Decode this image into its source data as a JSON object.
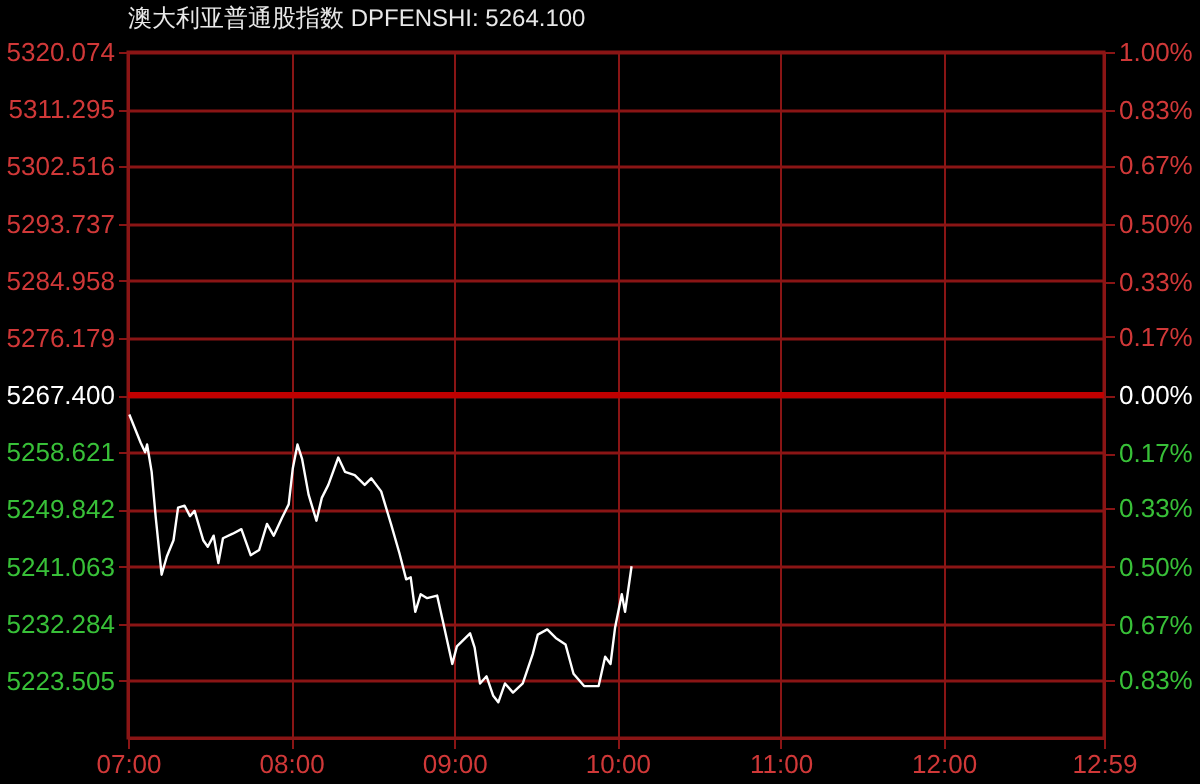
{
  "chart_data": {
    "type": "line",
    "title": "澳大利亚普通股指数 DPFENSHI: 5264.100",
    "x": [
      7.008,
      7.077,
      7.105,
      7.117,
      7.145,
      7.17,
      7.206,
      7.238,
      7.279,
      7.307,
      7.347,
      7.38,
      7.408,
      7.461,
      7.489,
      7.525,
      7.554,
      7.582,
      7.642,
      7.695,
      7.752,
      7.804,
      7.852,
      7.893,
      7.945,
      7.985,
      8.01,
      8.039,
      8.067,
      8.107,
      8.155,
      8.188,
      8.228,
      8.289,
      8.33,
      8.39,
      8.451,
      8.491,
      8.552,
      8.612,
      8.664,
      8.705,
      8.733,
      8.761,
      8.794,
      8.834,
      8.895,
      8.935,
      8.988,
      9.016,
      9.097,
      9.125,
      9.158,
      9.198,
      9.239,
      9.27,
      9.311,
      9.36,
      9.42,
      9.481,
      9.512,
      9.57,
      9.622,
      9.682,
      9.731,
      9.796,
      9.885,
      9.925,
      9.958,
      9.986,
      10.027,
      10.047,
      10.087
    ],
    "series": [
      {
        "color": "#ffffff",
        "values": [
          5264.4,
          5260.1,
          5258.6,
          5259.8,
          5255.6,
          5248.6,
          5239.8,
          5242.6,
          5245.1,
          5250.1,
          5250.4,
          5248.8,
          5249.6,
          5245.1,
          5244.1,
          5245.8,
          5241.6,
          5245.4,
          5246.1,
          5246.8,
          5242.8,
          5243.6,
          5247.6,
          5245.8,
          5248.6,
          5250.6,
          5256.1,
          5259.8,
          5257.6,
          5252.1,
          5248.1,
          5251.6,
          5253.6,
          5257.8,
          5255.6,
          5255.1,
          5253.6,
          5254.6,
          5252.6,
          5247.6,
          5243.1,
          5239.1,
          5239.4,
          5234.1,
          5236.8,
          5236.2,
          5236.6,
          5232.1,
          5226.1,
          5228.8,
          5230.8,
          5228.6,
          5223.1,
          5224.2,
          5221.2,
          5220.2,
          5223.1,
          5221.7,
          5223.1,
          5227.6,
          5230.6,
          5231.4,
          5230.1,
          5229.1,
          5224.6,
          5222.7,
          5222.7,
          5227.2,
          5226.1,
          5231.7,
          5236.8,
          5234.1,
          5241.1
        ]
      }
    ],
    "xlim": [
      7,
      12.983
    ],
    "xticks": [
      {
        "value": 7,
        "label": "07:00"
      },
      {
        "value": 8,
        "label": "08:00"
      },
      {
        "value": 9,
        "label": "09:00"
      },
      {
        "value": 10,
        "label": "10:00"
      },
      {
        "value": 11,
        "label": "11:00"
      },
      {
        "value": 12,
        "label": "12:00"
      },
      {
        "value": 12.983,
        "label": "12:59"
      }
    ],
    "ylim": [
      5214.726,
      5320.074
    ],
    "yticks": [
      {
        "value": 5320.074,
        "label": "5320.074"
      },
      {
        "value": 5311.295,
        "label": "5311.295"
      },
      {
        "value": 5302.516,
        "label": "5302.516"
      },
      {
        "value": 5293.737,
        "label": "5293.737"
      },
      {
        "value": 5284.958,
        "label": "5284.958"
      },
      {
        "value": 5276.179,
        "label": "5276.179"
      },
      {
        "value": 5267.4,
        "label": "5267.400"
      },
      {
        "value": 5258.621,
        "label": "5258.621"
      },
      {
        "value": 5249.842,
        "label": "5249.842"
      },
      {
        "value": 5241.063,
        "label": "5241.063"
      },
      {
        "value": 5232.284,
        "label": "5232.284"
      },
      {
        "value": 5223.505,
        "label": "5223.505"
      }
    ],
    "y2lim": [
      -1.0,
      1.0
    ],
    "y2ticks": [
      {
        "value": 1.0,
        "label": "1.00%"
      },
      {
        "value": 0.83,
        "label": "0.83%"
      },
      {
        "value": 0.67,
        "label": "0.67%"
      },
      {
        "value": 0.5,
        "label": "0.50%"
      },
      {
        "value": 0.33,
        "label": "0.33%"
      },
      {
        "value": 0.17,
        "label": "0.17%"
      },
      {
        "value": 0,
        "label": "0.00%"
      },
      {
        "value": -0.17,
        "label": "0.17%"
      },
      {
        "value": -0.33,
        "label": "0.33%"
      },
      {
        "value": -0.5,
        "label": "0.50%"
      },
      {
        "value": -0.67,
        "label": "0.67%"
      },
      {
        "value": -0.83,
        "label": "0.83%"
      }
    ],
    "ref_lines": [
      {
        "axis": "y2",
        "value": 0,
        "color": "#c00000"
      }
    ],
    "grid": true
  }
}
